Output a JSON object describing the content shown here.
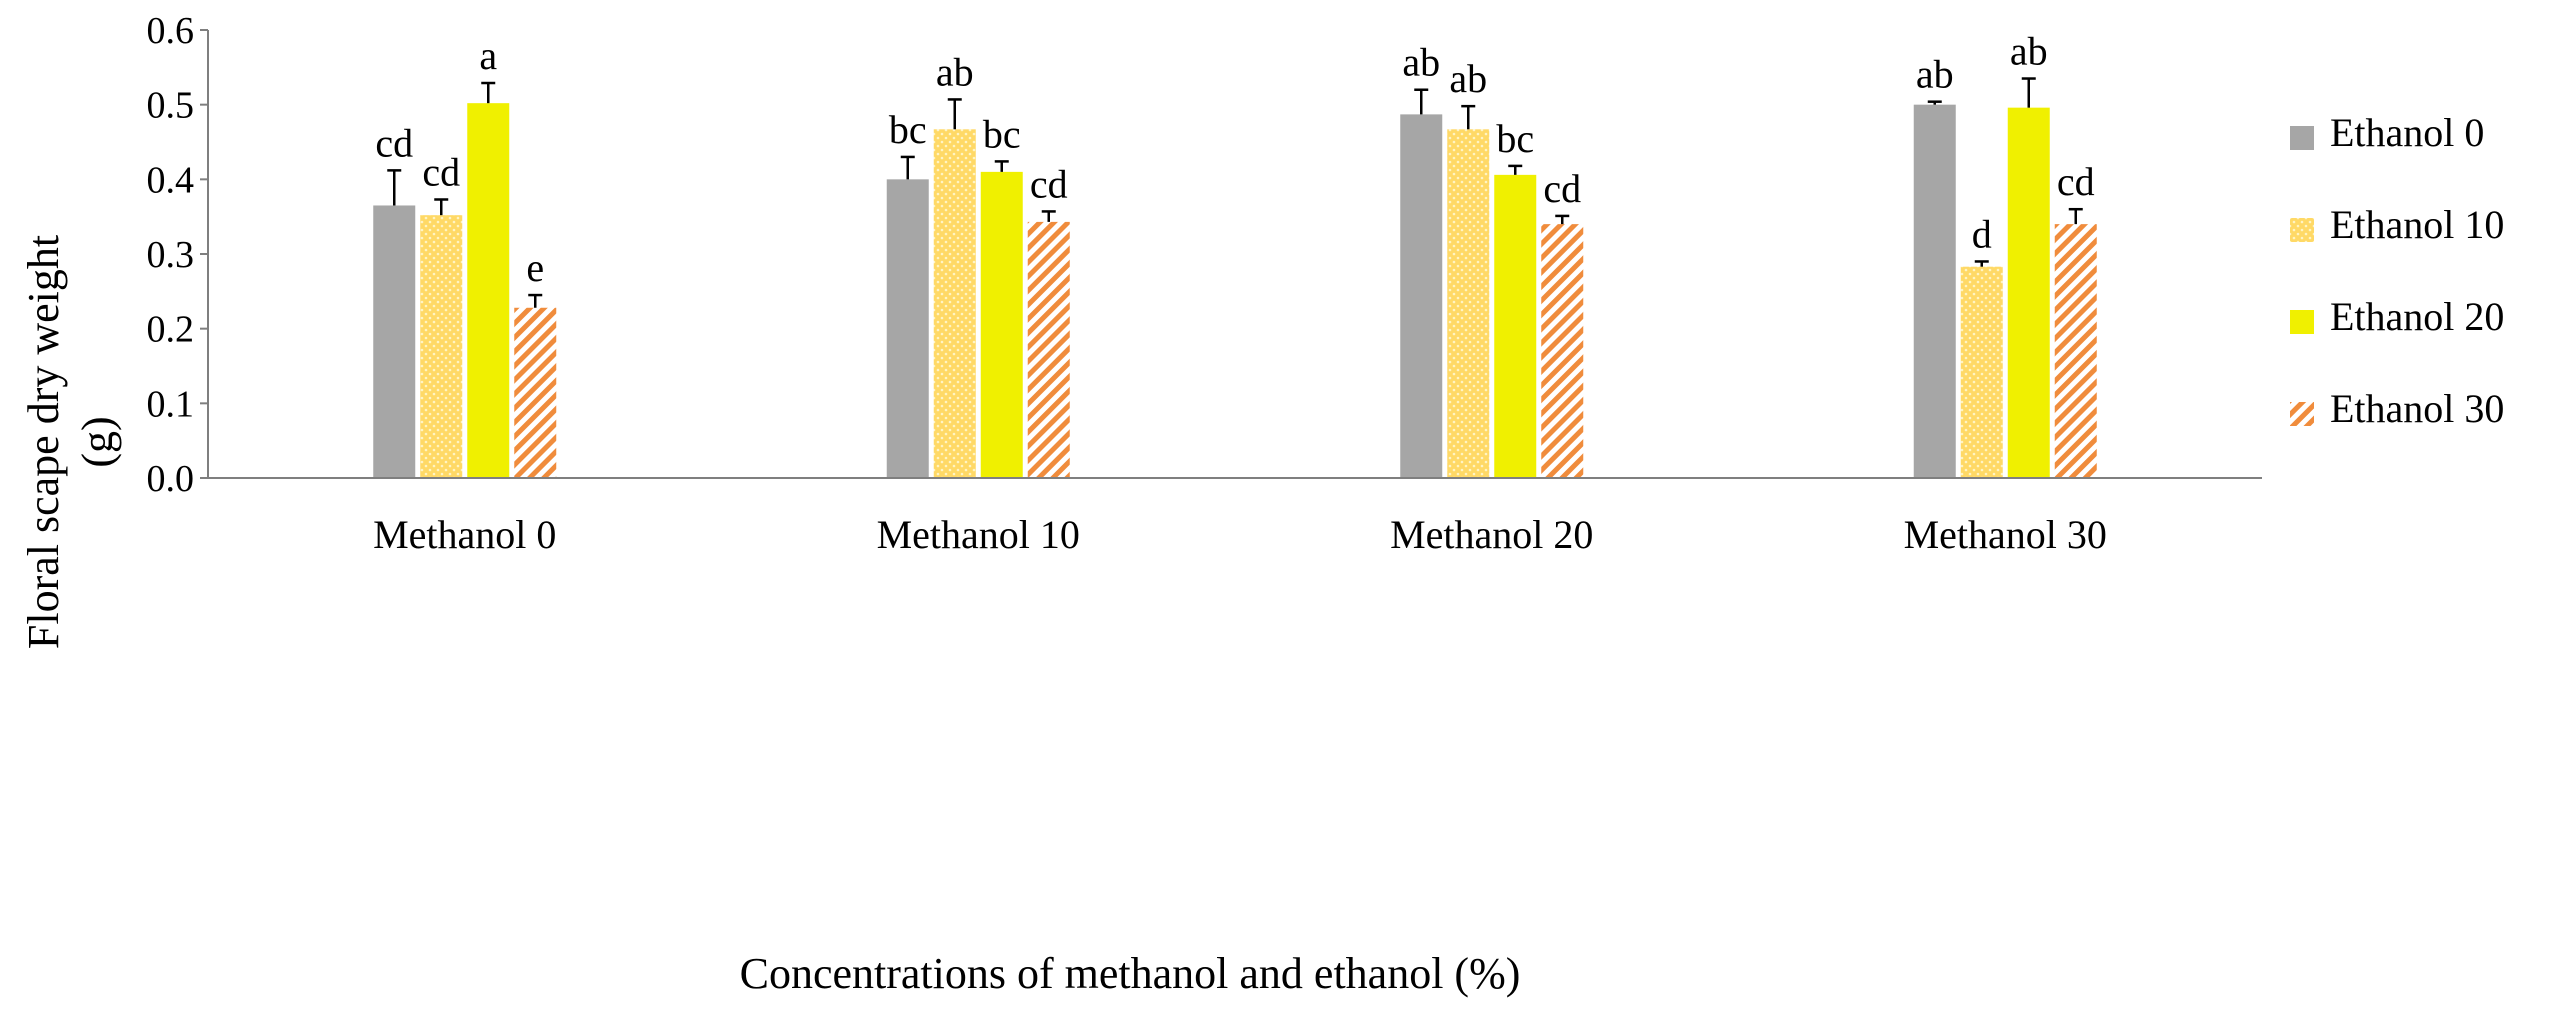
{
  "chart_data": {
    "type": "bar",
    "title": "",
    "xlabel": "Concentrations of methanol and ethanol (%)",
    "ylabel_lines": [
      "Floral scape dry weight",
      "(g)"
    ],
    "ylim": [
      0,
      0.6
    ],
    "yticks": [
      "0.0",
      "0.1",
      "0.2",
      "0.3",
      "0.4",
      "0.5",
      "0.6"
    ],
    "grid": false,
    "legend_position": "right",
    "categories": [
      "Methanol 0",
      "Methanol 10",
      "Methanol 20",
      "Methanol 30"
    ],
    "series": [
      {
        "name": "Ethanol 0",
        "color": "#a6a6a6",
        "pattern": "solid",
        "values": [
          0.365,
          0.4,
          0.487,
          0.5
        ],
        "errors": [
          0.047,
          0.03,
          0.033,
          0.004
        ],
        "letters": [
          "cd",
          "bc",
          "ab",
          "ab"
        ]
      },
      {
        "name": "Ethanol 10",
        "color": "#ffd966",
        "pattern": "dots",
        "values": [
          0.352,
          0.467,
          0.467,
          0.283
        ],
        "errors": [
          0.021,
          0.04,
          0.031,
          0.007
        ],
        "letters": [
          "cd",
          "ab",
          "ab",
          "d"
        ]
      },
      {
        "name": "Ethanol 20",
        "color": "#f0f000",
        "pattern": "solid",
        "values": [
          0.502,
          0.41,
          0.406,
          0.496
        ],
        "errors": [
          0.027,
          0.014,
          0.012,
          0.039
        ],
        "letters": [
          "a",
          "bc",
          "bc",
          "ab"
        ]
      },
      {
        "name": "Ethanol 30",
        "color": "#f4a460",
        "pattern": "diagonal",
        "values": [
          0.228,
          0.343,
          0.34,
          0.34
        ],
        "errors": [
          0.017,
          0.014,
          0.011,
          0.02
        ],
        "letters": [
          "e",
          "cd",
          "cd",
          "cd"
        ]
      }
    ]
  }
}
